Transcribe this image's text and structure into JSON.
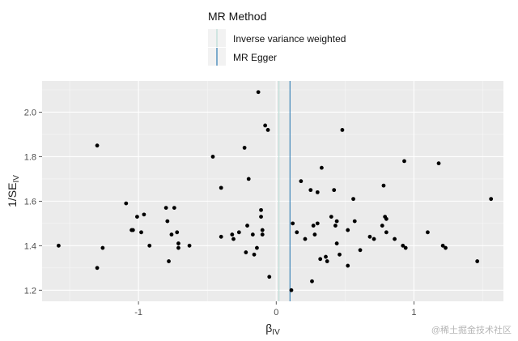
{
  "legend": {
    "title": "MR Method",
    "items": [
      {
        "label": "Inverse variance weighted",
        "color": "#b9ddd6"
      },
      {
        "label": "MR Egger",
        "color": "#2e7cb4"
      }
    ]
  },
  "watermark": "@稀土掘金技术社区",
  "chart_data": {
    "type": "scatter",
    "xlabel_main": "β",
    "xlabel_sub": "IV",
    "ylabel_main": "1/SE",
    "ylabel_sub": "IV",
    "xlim": [
      -1.7,
      1.65
    ],
    "ylim": [
      1.15,
      2.14
    ],
    "xticks": [
      -1,
      0,
      1
    ],
    "yticks": [
      1.2,
      1.4,
      1.6,
      1.8,
      2.0
    ],
    "ytick_labels": [
      "1.2",
      "1.4",
      "1.6",
      "1.8",
      "2.0"
    ],
    "grid": true,
    "lines": [
      {
        "method": "Inverse variance weighted",
        "x": 0.02,
        "color": "#b9ddd6"
      },
      {
        "method": "MR Egger",
        "x": 0.1,
        "color": "#2e7cb4"
      }
    ],
    "points": [
      [
        -1.58,
        1.4
      ],
      [
        -1.3,
        1.85
      ],
      [
        -1.3,
        1.3
      ],
      [
        -1.26,
        1.39
      ],
      [
        -1.09,
        1.59
      ],
      [
        -1.05,
        1.47
      ],
      [
        -1.04,
        1.47
      ],
      [
        -1.01,
        1.53
      ],
      [
        -0.98,
        1.46
      ],
      [
        -0.96,
        1.54
      ],
      [
        -0.92,
        1.4
      ],
      [
        -0.8,
        1.57
      ],
      [
        -0.79,
        1.51
      ],
      [
        -0.78,
        1.33
      ],
      [
        -0.76,
        1.45
      ],
      [
        -0.74,
        1.57
      ],
      [
        -0.72,
        1.46
      ],
      [
        -0.71,
        1.41
      ],
      [
        -0.71,
        1.39
      ],
      [
        -0.63,
        1.4
      ],
      [
        -0.46,
        1.8
      ],
      [
        -0.4,
        1.66
      ],
      [
        -0.4,
        1.44
      ],
      [
        -0.32,
        1.45
      ],
      [
        -0.31,
        1.43
      ],
      [
        -0.27,
        1.46
      ],
      [
        -0.23,
        1.84
      ],
      [
        -0.22,
        1.37
      ],
      [
        -0.2,
        1.7
      ],
      [
        -0.21,
        1.49
      ],
      [
        -0.17,
        1.45
      ],
      [
        -0.16,
        1.36
      ],
      [
        -0.14,
        1.39
      ],
      [
        -0.13,
        2.09
      ],
      [
        -0.11,
        1.56
      ],
      [
        -0.11,
        1.53
      ],
      [
        -0.1,
        1.47
      ],
      [
        -0.1,
        1.45
      ],
      [
        -0.08,
        1.94
      ],
      [
        -0.06,
        1.92
      ],
      [
        -0.05,
        1.26
      ],
      [
        0.11,
        1.2
      ],
      [
        0.12,
        1.5
      ],
      [
        0.15,
        1.46
      ],
      [
        0.18,
        1.69
      ],
      [
        0.21,
        1.43
      ],
      [
        0.25,
        1.65
      ],
      [
        0.26,
        1.24
      ],
      [
        0.27,
        1.49
      ],
      [
        0.28,
        1.45
      ],
      [
        0.3,
        1.64
      ],
      [
        0.3,
        1.5
      ],
      [
        0.32,
        1.34
      ],
      [
        0.33,
        1.75
      ],
      [
        0.36,
        1.35
      ],
      [
        0.37,
        1.33
      ],
      [
        0.4,
        1.53
      ],
      [
        0.42,
        1.65
      ],
      [
        0.43,
        1.49
      ],
      [
        0.44,
        1.41
      ],
      [
        0.44,
        1.51
      ],
      [
        0.46,
        1.36
      ],
      [
        0.48,
        1.92
      ],
      [
        0.52,
        1.31
      ],
      [
        0.52,
        1.47
      ],
      [
        0.56,
        1.61
      ],
      [
        0.57,
        1.51
      ],
      [
        0.61,
        1.38
      ],
      [
        0.68,
        1.44
      ],
      [
        0.71,
        1.43
      ],
      [
        0.77,
        1.49
      ],
      [
        0.78,
        1.67
      ],
      [
        0.79,
        1.53
      ],
      [
        0.8,
        1.52
      ],
      [
        0.8,
        1.46
      ],
      [
        0.86,
        1.43
      ],
      [
        0.92,
        1.4
      ],
      [
        0.93,
        1.78
      ],
      [
        0.94,
        1.39
      ],
      [
        1.1,
        1.46
      ],
      [
        1.18,
        1.77
      ],
      [
        1.21,
        1.4
      ],
      [
        1.23,
        1.39
      ],
      [
        1.46,
        1.33
      ],
      [
        1.56,
        1.61
      ]
    ]
  }
}
